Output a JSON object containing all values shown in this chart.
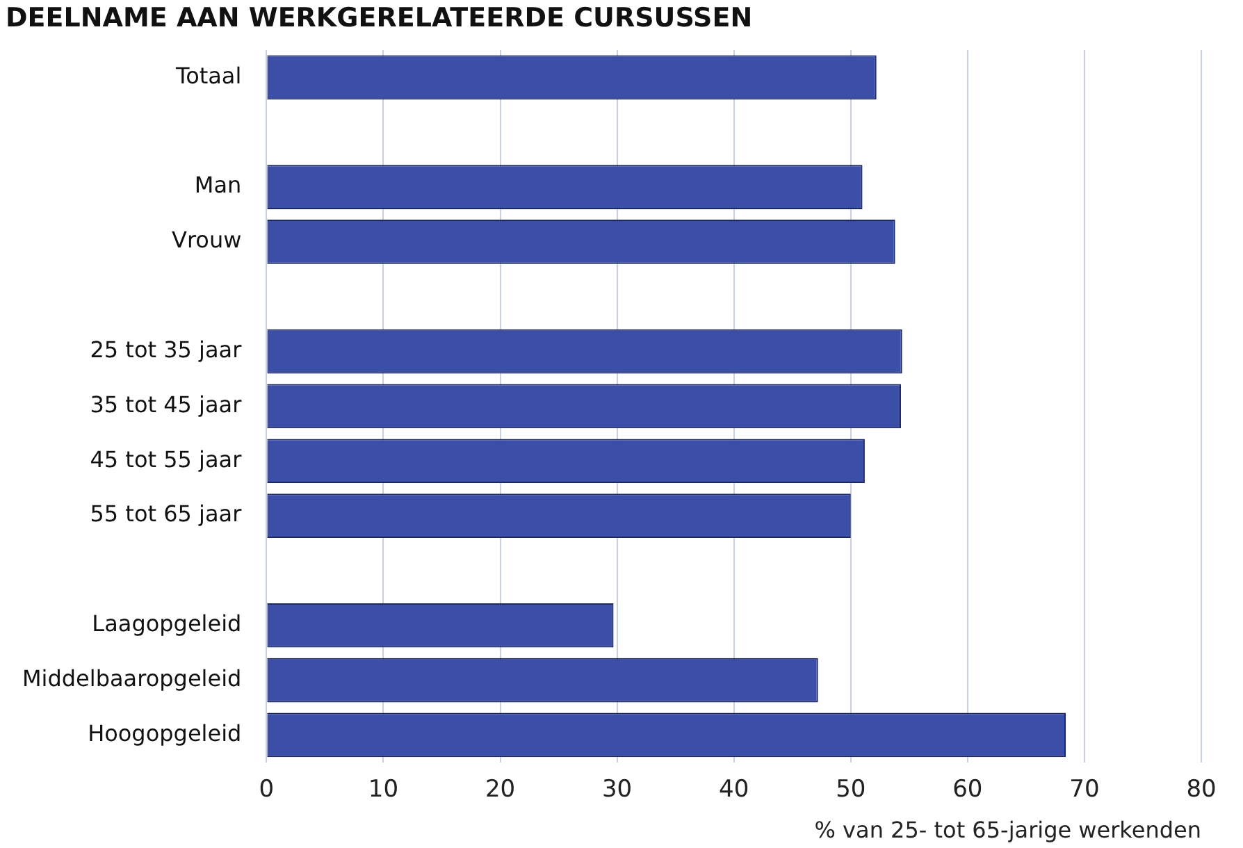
{
  "chart_data": {
    "type": "bar",
    "orientation": "horizontal",
    "title": "DEELNAME AAN WERKGERELATEERDE CURSUSSEN",
    "xlabel": "% van 25- tot 65-jarige werkenden",
    "categories": [
      "Totaal",
      null,
      "Man",
      "Vrouw",
      null,
      "25 tot 35 jaar",
      "35 tot 45 jaar",
      "45 tot 55 jaar",
      "55 tot 65 jaar",
      null,
      "Laagopgeleid",
      "Middelbaaropgeleid",
      "Hoogopgeleid"
    ],
    "values": [
      52.2,
      null,
      51,
      53.8,
      null,
      54.4,
      54.3,
      51.2,
      50,
      null,
      29.7,
      47.2,
      68.4
    ],
    "color": "#3b4fa8",
    "xlim": [
      0,
      80
    ],
    "xticks": [
      0,
      10,
      20,
      30,
      40,
      50,
      60,
      70,
      80
    ],
    "grid": "x",
    "legend": false
  }
}
